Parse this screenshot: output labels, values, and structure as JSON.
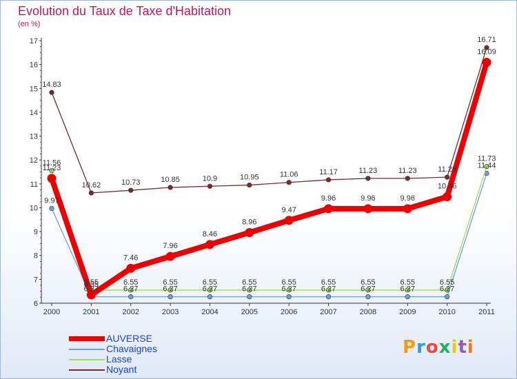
{
  "chart_data": {
    "type": "line",
    "title": "Evolution du Taux de Taxe d'Habitation",
    "subtitle": "(en %)",
    "x": [
      "2000",
      "2001",
      "2002",
      "2003",
      "2004",
      "2005",
      "2006",
      "2007",
      "2008",
      "2009",
      "2010",
      "2011"
    ],
    "ylim": [
      6,
      17
    ],
    "yticks": [
      6,
      7,
      8,
      9,
      10,
      11,
      12,
      13,
      14,
      15,
      16,
      17
    ],
    "grid": false,
    "series": [
      {
        "name": "AUVERSE",
        "color": "#ee0000",
        "values": [
          11.23,
          6.35,
          7.46,
          7.96,
          8.46,
          8.96,
          9.47,
          9.96,
          9.96,
          9.96,
          10.46,
          16.09
        ],
        "labels": [
          "11.23",
          "6.35",
          "7.46",
          "7.96",
          "8.46",
          "8.96",
          "9.47",
          "9.96",
          "9.96",
          "9.96",
          "10.46",
          "16.09"
        ]
      },
      {
        "name": "Chavaignes",
        "color": "#6f9fd6",
        "values": [
          9.97,
          6.27,
          6.27,
          6.27,
          6.27,
          6.27,
          6.27,
          6.27,
          6.27,
          6.27,
          6.27,
          11.44
        ],
        "labels": [
          "9.97",
          "6.27",
          "6.27",
          "6.27",
          "6.27",
          "6.27",
          "6.27",
          "6.27",
          "6.27",
          "6.27",
          "6.27",
          "11.44"
        ]
      },
      {
        "name": "Lasse",
        "color": "#9fdc5a",
        "values": [
          11.56,
          6.55,
          6.55,
          6.55,
          6.55,
          6.55,
          6.55,
          6.55,
          6.55,
          6.55,
          6.55,
          11.73
        ],
        "labels": [
          "11.56",
          "6.55",
          "6.55",
          "6.55",
          "6.55",
          "6.55",
          "6.55",
          "6.55",
          "6.55",
          "6.55",
          "6.55",
          "11.73"
        ]
      },
      {
        "name": "Noyant",
        "color": "#7a2a2a",
        "values": [
          14.83,
          10.62,
          10.73,
          10.85,
          10.9,
          10.95,
          11.06,
          11.17,
          11.23,
          11.23,
          11.28,
          16.71
        ],
        "labels": [
          "14.83",
          "10.62",
          "10.73",
          "10.85",
          "10.9",
          "10.95",
          "11.06",
          "11.17",
          "11.23",
          "11.23",
          "11.28",
          "16.71"
        ]
      }
    ]
  },
  "legend": {
    "items": [
      {
        "name": "AUVERSE",
        "color": "#ee0000",
        "thickness": "thick"
      },
      {
        "name": "Chavaignes",
        "color": "#6f9fd6",
        "thickness": "thin"
      },
      {
        "name": "Lasse",
        "color": "#9fdc5a",
        "thickness": "thin"
      },
      {
        "name": "Noyant",
        "color": "#7a2a2a",
        "thickness": "thin"
      }
    ]
  },
  "logo": {
    "text": "Proxiti",
    "letters": [
      {
        "char": "P",
        "color": "#f39c12"
      },
      {
        "char": "r",
        "color": "#3498db"
      },
      {
        "char": "o",
        "color": "#e74c3c"
      },
      {
        "char": "x",
        "color": "#27ae60"
      },
      {
        "char": "i",
        "color": "#f1c40f"
      },
      {
        "char": "t",
        "color": "#9b59b6"
      },
      {
        "char": "i",
        "color": "#e67e22"
      }
    ]
  }
}
